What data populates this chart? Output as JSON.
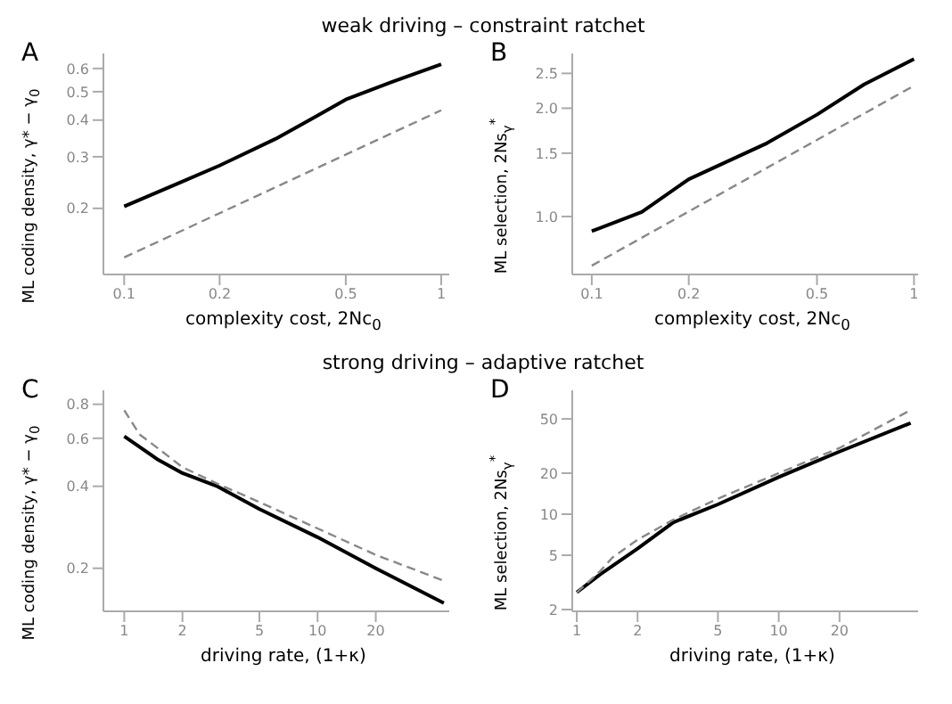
{
  "chart_data": [
    {
      "type": "line",
      "title": "weak driving – constraint ratchet",
      "annotations": [
        "A"
      ],
      "xlabel": "complexity cost, 2Nc$_{0}$",
      "ylabel": "ML coding density, γ* − γ$_{0}$",
      "log": "xy",
      "xlim": [
        0.086,
        1.06
      ],
      "xticks": [
        0.1,
        0.2,
        0.5,
        1
      ],
      "ylim": [
        0.119,
        0.675
      ],
      "yticks": [
        0.2,
        0.3,
        0.4,
        0.5,
        0.6
      ],
      "grid": false,
      "legend": false,
      "series": [
        {
          "color": "#000000",
          "line_style": "solid",
          "x": [
            0.1,
            0.15,
            0.2,
            0.3,
            0.4,
            0.5,
            0.7,
            1
          ],
          "values": [
            0.203,
            0.245,
            0.28,
            0.345,
            0.41,
            0.47,
            0.54,
            0.62
          ]
        },
        {
          "color": "#888888",
          "line_style": "dashed",
          "x": [
            0.1,
            1
          ],
          "values": [
            0.136,
            0.432
          ]
        }
      ]
    },
    {
      "type": "line",
      "annotations": [
        "B"
      ],
      "xlabel": "complexity cost, 2Nc$_{0}$",
      "ylabel": "ML selection, 2Ns$_{γ}$$^{*}$",
      "log": "xy",
      "xlim": [
        0.087,
        1.03
      ],
      "xticks": [
        0.1,
        0.2,
        0.5,
        1
      ],
      "ylim": [
        0.69,
        2.84
      ],
      "yticks": [
        {
          "value": 1,
          "label": "1.0"
        },
        1.5,
        {
          "value": 2,
          "label": "2.0"
        },
        2.5
      ],
      "grid": false,
      "legend": false,
      "series": [
        {
          "color": "#000000",
          "line_style": "solid",
          "x": [
            0.1,
            0.143,
            0.2,
            0.35,
            0.5,
            0.7,
            1
          ],
          "values": [
            0.91,
            1.03,
            1.27,
            1.6,
            1.92,
            2.33,
            2.74
          ]
        },
        {
          "color": "#888888",
          "line_style": "dashed",
          "x": [
            0.1,
            1
          ],
          "values": [
            0.73,
            2.31
          ]
        }
      ]
    },
    {
      "type": "line",
      "title": "strong driving – adaptive ratchet",
      "annotations": [
        "C"
      ],
      "xlabel": "driving rate, (1+κ)",
      "ylabel": "ML coding density, γ* − γ$_{0}$",
      "log": "xy",
      "xlim": [
        0.78,
        48
      ],
      "xticks": [
        1,
        2,
        5,
        10,
        20
      ],
      "ylim": [
        0.139,
        0.9
      ],
      "yticks": [
        0.2,
        0.4,
        0.6,
        0.8
      ],
      "grid": false,
      "legend": false,
      "series": [
        {
          "color": "#000000",
          "line_style": "solid",
          "x": [
            1,
            1.5,
            2,
            3,
            5,
            10,
            20,
            45
          ],
          "values": [
            0.61,
            0.5,
            0.447,
            0.401,
            0.33,
            0.26,
            0.2,
            0.149
          ]
        },
        {
          "color": "#888888",
          "line_style": "dashed",
          "x": [
            1,
            1.2,
            1.5,
            2,
            3,
            5,
            10,
            20,
            45
          ],
          "values": [
            0.76,
            0.62,
            0.55,
            0.47,
            0.41,
            0.35,
            0.28,
            0.224,
            0.18
          ]
        }
      ]
    },
    {
      "type": "line",
      "annotations": [
        "D"
      ],
      "xlabel": "driving rate, (1+κ)",
      "ylabel": "ML selection, 2Ns$_{γ}$$^{*}$",
      "log": "xy",
      "xlim": [
        0.95,
        49
      ],
      "xticks": [
        1,
        2,
        5,
        10,
        20
      ],
      "ylim": [
        1.94,
        81
      ],
      "yticks": [
        2,
        5,
        10,
        20,
        50
      ],
      "grid": false,
      "legend": false,
      "series": [
        {
          "color": "#000000",
          "line_style": "solid",
          "x": [
            1,
            1.3,
            2,
            3,
            5,
            10,
            20,
            45
          ],
          "values": [
            2.67,
            3.6,
            5.6,
            8.7,
            11.8,
            18.7,
            28.8,
            46.6
          ]
        },
        {
          "color": "#888888",
          "line_style": "dashed",
          "x": [
            1,
            1.3,
            1.5,
            2,
            3,
            5,
            10,
            20,
            45
          ],
          "values": [
            2.67,
            3.8,
            4.8,
            6.5,
            9.1,
            13,
            20,
            30.6,
            58
          ]
        }
      ]
    }
  ]
}
